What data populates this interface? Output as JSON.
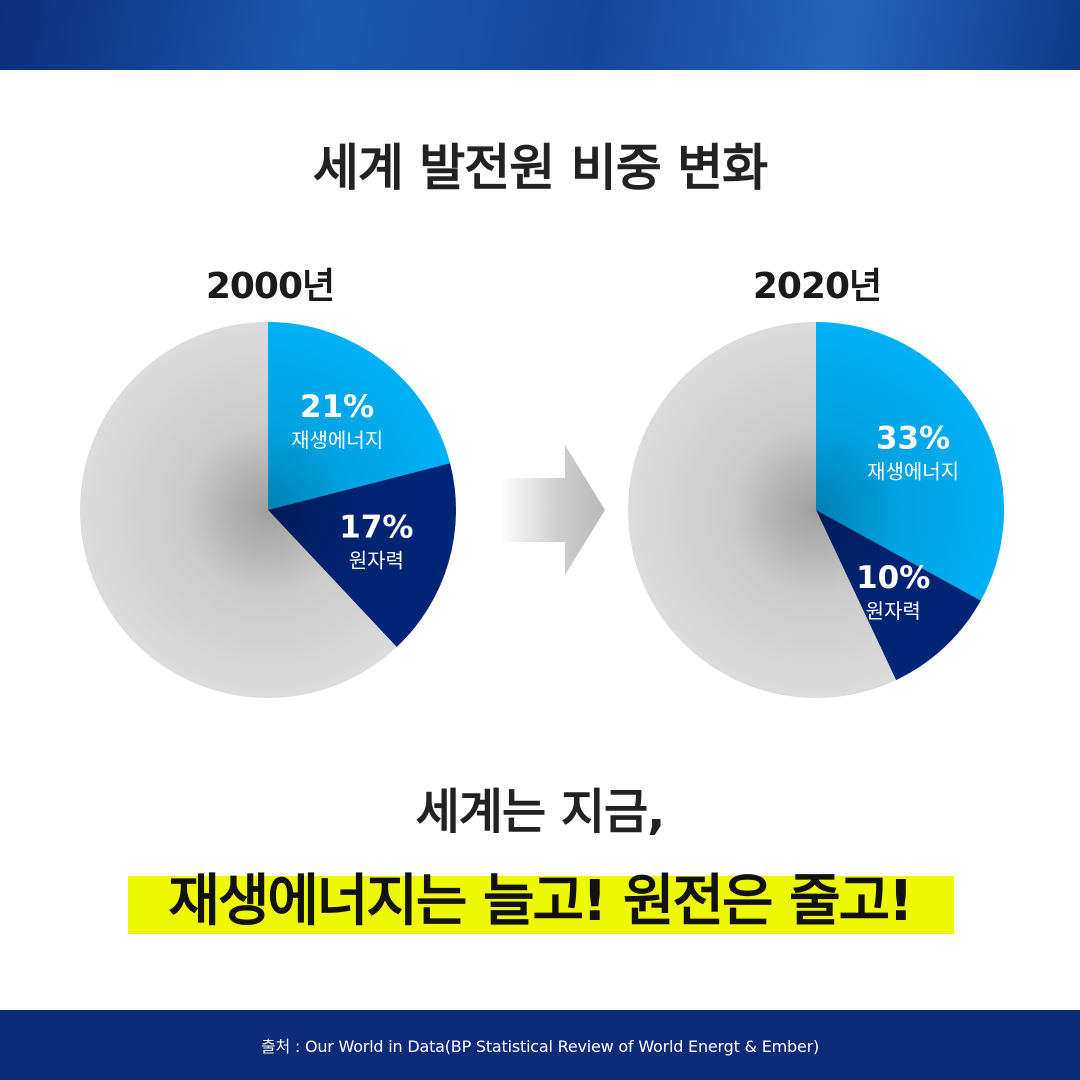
{
  "title": "세계 발전원 비중 변화",
  "headline": "세계는 지금,",
  "highlight": "재생에너지는 늘고! 원전은 줄고!",
  "source": "출처 : Our World in Data(BP Statistical Review of World Energt & Ember)",
  "colors": {
    "renewable": "#00b0f5",
    "nuclear": "#002578",
    "other": "#dcdcdc",
    "highlight": "#eefb00",
    "footer": "#0b2a78"
  },
  "chart_data": [
    {
      "type": "pie",
      "title": "2000년",
      "slices": [
        {
          "label": "재생에너지",
          "value": 21,
          "value_label": "21%",
          "color": "#00b0f5"
        },
        {
          "label": "원자력",
          "value": 17,
          "value_label": "17%",
          "color": "#002578"
        },
        {
          "label": "",
          "value": 62,
          "value_label": "",
          "color": "#dcdcdc"
        }
      ]
    },
    {
      "type": "pie",
      "title": "2020년",
      "slices": [
        {
          "label": "재생에너지",
          "value": 33,
          "value_label": "33%",
          "color": "#00b0f5"
        },
        {
          "label": "원자력",
          "value": 10,
          "value_label": "10%",
          "color": "#002578"
        },
        {
          "label": "",
          "value": 57,
          "value_label": "",
          "color": "#dcdcdc"
        }
      ]
    }
  ]
}
